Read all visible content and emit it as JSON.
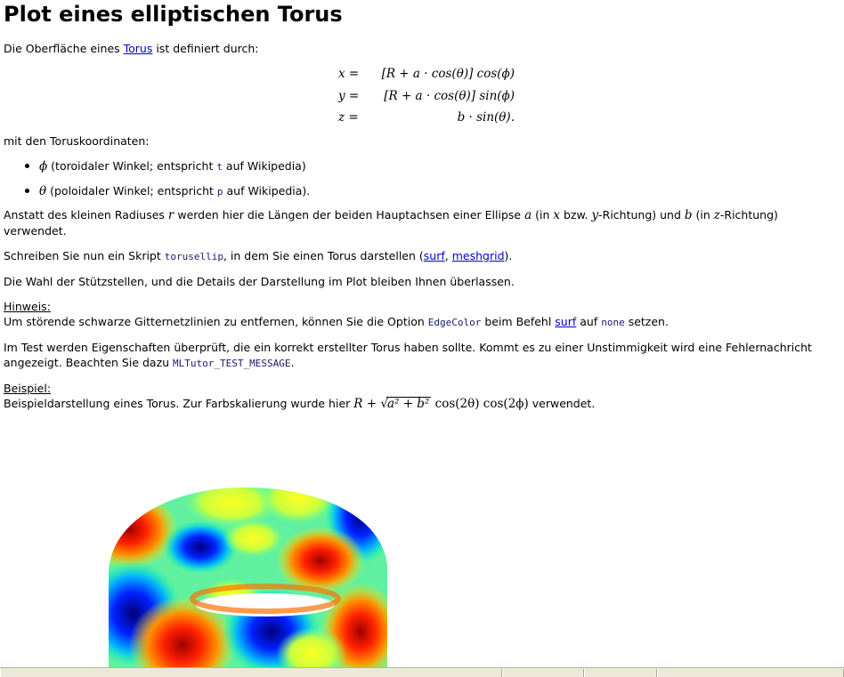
{
  "title": "Plot eines elliptischen Torus",
  "intro": {
    "before_link": "Die Oberfläche eines ",
    "link": "Torus",
    "after_link": " ist definiert durch:"
  },
  "equations": [
    {
      "lhs": "x =",
      "rhs": "[R + a · cos(θ)] cos(ϕ)"
    },
    {
      "lhs": "y =",
      "rhs": "[R + a · cos(θ)] sin(ϕ)"
    },
    {
      "lhs": "z =",
      "rhs": "b · sin(θ)."
    }
  ],
  "coords_intro": "mit den Toruskoordinaten:",
  "bullets": [
    {
      "symbol": "ϕ",
      "text_a": " (toroidaler Winkel; entspricht ",
      "code": "t",
      "text_b": " auf Wikipedia)"
    },
    {
      "symbol": "θ",
      "text_a": " (poloidaler Winkel; entspricht ",
      "code": "p",
      "text_b": " auf Wikipedia)."
    }
  ],
  "radius_para": {
    "t1": "Anstatt des kleinen Radiuses ",
    "r": "r",
    "t2": " werden hier die Längen der beiden Hauptachsen einer Ellipse ",
    "a": "a",
    "t3": " (in ",
    "x": "x",
    "t4": " bzw. ",
    "y": "y",
    "t5": "-Richtung) und ",
    "b": "b",
    "t6": " (in ",
    "z": "z",
    "t7": "-Richtung) verwendet."
  },
  "script_para": {
    "t1": "Schreiben Sie nun ein Skript ",
    "code": "torusellip",
    "t2": ", in dem Sie einen Torus darstellen (",
    "link1": "surf",
    "sep": ", ",
    "link2": "meshgrid",
    "t3": ")."
  },
  "choice_para": "Die Wahl der Stützstellen, und die Details der Darstellung im Plot bleiben Ihnen überlassen.",
  "hint": {
    "label": "Hinweis:",
    "t1": "Um störende schwarze Gitternetzlinien zu entfernen, können Sie die Option ",
    "code1": "EdgeColor",
    "t2": " beim Befehl ",
    "link": "surf",
    "t3": " auf ",
    "code2": "none",
    "t4": " setzen."
  },
  "test_para": {
    "t1": "Im Test werden Eigenschaften überprüft, die ein korrekt erstellter Torus haben sollte. Kommt es zu einer Unstimmigkeit wird eine Fehlernachricht angezeigt. Beachten Sie dazu ",
    "code": "MLTutor_TEST_MESSAGE",
    "t2": "."
  },
  "example": {
    "label": "Beispiel:",
    "t1": "Beispieldarstellung eines Torus. Zur Farbskalierung wurde hier ",
    "formula_a": "R + ",
    "sqrt_body": "a² + b²",
    "formula_b": " cos(2θ) cos(2ϕ)",
    "t2": " verwendet."
  },
  "colors": {
    "link": "#0000cc",
    "code": "#1a1a6e",
    "statusbar": "#ece9d8"
  }
}
